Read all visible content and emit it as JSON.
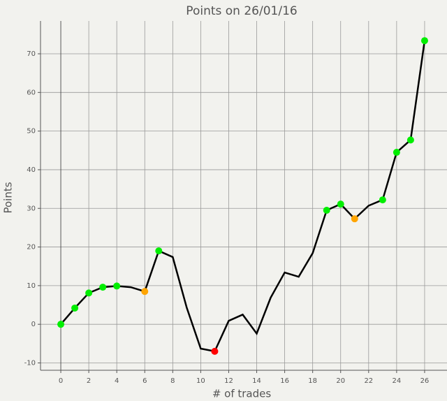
{
  "chart_data": {
    "type": "line",
    "title": "Points on 26/01/16",
    "x_label": "# of trades",
    "y_label": "Points",
    "x": [
      0,
      1,
      2,
      3,
      4,
      5,
      6,
      7,
      8,
      9,
      10,
      11,
      12,
      13,
      14,
      15,
      16,
      17,
      18,
      19,
      20,
      21,
      22,
      23,
      24,
      25,
      26
    ],
    "series": [
      {
        "name": "Points",
        "color": "#000000",
        "values": [
          0,
          4.2,
          8.1,
          9.6,
          9.9,
          9.6,
          8.5,
          19.0,
          17.4,
          4.3,
          -6.3,
          -7.0,
          0.9,
          2.5,
          -2.4,
          6.9,
          13.4,
          12.3,
          18.4,
          29.5,
          31.1,
          27.3,
          30.7,
          32.2,
          44.5,
          47.7,
          73.4
        ],
        "marker_colors": [
          "#00ee00",
          "#00ee00",
          "#00ee00",
          "#00ee00",
          "#00ee00",
          null,
          "#ffa500",
          "#00ee00",
          null,
          null,
          null,
          "#ff0000",
          null,
          null,
          null,
          null,
          null,
          null,
          null,
          "#00ee00",
          "#00ee00",
          "#ffa500",
          null,
          "#00ee00",
          "#00ee00",
          "#00ee00",
          "#00ee00"
        ]
      }
    ],
    "xlim": [
      -1.45,
      27.6
    ],
    "ylim": [
      -11.9,
      78.5
    ],
    "xticks": [
      0,
      2,
      4,
      6,
      8,
      10,
      12,
      14,
      16,
      18,
      20,
      22,
      24,
      26
    ],
    "yticks": [
      -10,
      0,
      10,
      20,
      30,
      40,
      50,
      60,
      70
    ],
    "grid": true
  }
}
